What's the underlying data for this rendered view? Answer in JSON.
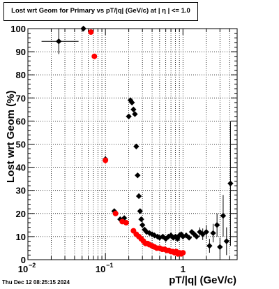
{
  "chart_data": {
    "type": "scatter",
    "title": "Lost wrt Geom for Primary vs pT/|q| (GeV/c) at |  η  | <= 1.0",
    "xlabel": "pT/|q| (GeV/c)",
    "ylabel": "Lost wrt Geom (%)",
    "x_scale": "log",
    "xlim": [
      0.01,
      5.0
    ],
    "ylim": [
      0,
      100
    ],
    "x_tick_labels": [
      {
        "value": 0.01,
        "label": "10",
        "exp": "−2"
      },
      {
        "value": 0.1,
        "label": "10",
        "exp": "−1"
      },
      {
        "value": 1,
        "label": "1",
        "exp": ""
      }
    ],
    "y_ticks": [
      0,
      10,
      20,
      30,
      40,
      50,
      60,
      70,
      80,
      90,
      100
    ],
    "grid": true,
    "series": [
      {
        "color": "#000000",
        "points": [
          {
            "x": 0.025,
            "y": 94.5,
            "xerr": [
              0.015,
              0.045
            ],
            "yerr": 5.5
          },
          {
            "x": 0.052,
            "y": 100
          },
          {
            "x": 0.1,
            "y": 43.5,
            "yerr": 1.5
          },
          {
            "x": 0.13,
            "y": 21
          },
          {
            "x": 0.155,
            "y": 17.5
          },
          {
            "x": 0.175,
            "y": 18
          },
          {
            "x": 0.2,
            "y": 62
          },
          {
            "x": 0.21,
            "y": 69
          },
          {
            "x": 0.22,
            "y": 68
          },
          {
            "x": 0.23,
            "y": 65
          },
          {
            "x": 0.24,
            "y": 63
          },
          {
            "x": 0.25,
            "y": 49
          },
          {
            "x": 0.26,
            "y": 36.5
          },
          {
            "x": 0.27,
            "y": 27.5
          },
          {
            "x": 0.28,
            "y": 21
          },
          {
            "x": 0.29,
            "y": 17.5
          },
          {
            "x": 0.3,
            "y": 15
          },
          {
            "x": 0.32,
            "y": 13
          },
          {
            "x": 0.34,
            "y": 12
          },
          {
            "x": 0.37,
            "y": 11.5
          },
          {
            "x": 0.4,
            "y": 11
          },
          {
            "x": 0.43,
            "y": 10.5
          },
          {
            "x": 0.47,
            "y": 10
          },
          {
            "x": 0.5,
            "y": 9.5
          },
          {
            "x": 0.55,
            "y": 10
          },
          {
            "x": 0.6,
            "y": 9
          },
          {
            "x": 0.65,
            "y": 10
          },
          {
            "x": 0.7,
            "y": 10.5
          },
          {
            "x": 0.75,
            "y": 9.5
          },
          {
            "x": 0.8,
            "y": 10
          },
          {
            "x": 0.85,
            "y": 9
          },
          {
            "x": 0.9,
            "y": 10.5
          },
          {
            "x": 0.95,
            "y": 11
          },
          {
            "x": 1.0,
            "y": 10
          },
          {
            "x": 1.1,
            "y": 10.5
          },
          {
            "x": 1.2,
            "y": 9.5
          },
          {
            "x": 1.3,
            "y": 12
          },
          {
            "x": 1.4,
            "y": 11
          },
          {
            "x": 1.5,
            "y": 10
          },
          {
            "x": 1.65,
            "y": 12,
            "yerr": 2
          },
          {
            "x": 1.8,
            "y": 11,
            "yerr": 2.5
          },
          {
            "x": 2.0,
            "y": 12,
            "yerr": 3
          },
          {
            "x": 2.2,
            "y": 6,
            "yerr": 3
          },
          {
            "x": 2.45,
            "y": 11.5,
            "yerr": 4
          },
          {
            "x": 2.75,
            "y": 15,
            "yerr": 5
          },
          {
            "x": 3.0,
            "y": 5.5,
            "yerr": 4
          },
          {
            "x": 3.3,
            "y": 19,
            "yerr": 9
          },
          {
            "x": 3.65,
            "y": 8,
            "yerr": 6
          },
          {
            "x": 4.1,
            "y": 33,
            "yerr": 27
          }
        ]
      },
      {
        "color": "#ff0000",
        "points": [
          {
            "x": 0.065,
            "y": 98.5
          },
          {
            "x": 0.072,
            "y": 88
          },
          {
            "x": 0.1,
            "y": 43,
            "yerr": 1.5
          },
          {
            "x": 0.135,
            "y": 20
          },
          {
            "x": 0.165,
            "y": 16.5
          },
          {
            "x": 0.185,
            "y": 16
          },
          {
            "x": 0.23,
            "y": 12.5
          },
          {
            "x": 0.25,
            "y": 11
          },
          {
            "x": 0.27,
            "y": 10
          },
          {
            "x": 0.29,
            "y": 9
          },
          {
            "x": 0.31,
            "y": 8
          },
          {
            "x": 0.33,
            "y": 7
          },
          {
            "x": 0.35,
            "y": 7
          },
          {
            "x": 0.37,
            "y": 6.5
          },
          {
            "x": 0.4,
            "y": 6
          },
          {
            "x": 0.43,
            "y": 5.5
          },
          {
            "x": 0.46,
            "y": 5
          },
          {
            "x": 0.5,
            "y": 5
          },
          {
            "x": 0.54,
            "y": 4.5
          },
          {
            "x": 0.58,
            "y": 4.5
          },
          {
            "x": 0.62,
            "y": 4
          },
          {
            "x": 0.66,
            "y": 4
          },
          {
            "x": 0.7,
            "y": 3.5
          },
          {
            "x": 0.74,
            "y": 3.5
          },
          {
            "x": 0.78,
            "y": 3
          },
          {
            "x": 0.82,
            "y": 3.5
          },
          {
            "x": 0.86,
            "y": 2.5
          },
          {
            "x": 0.9,
            "y": 3
          },
          {
            "x": 0.95,
            "y": 2.5
          },
          {
            "x": 1.0,
            "y": 3
          }
        ]
      }
    ]
  },
  "footer": {
    "timestamp": "Thu Dec 12 08:25:15 2024"
  }
}
